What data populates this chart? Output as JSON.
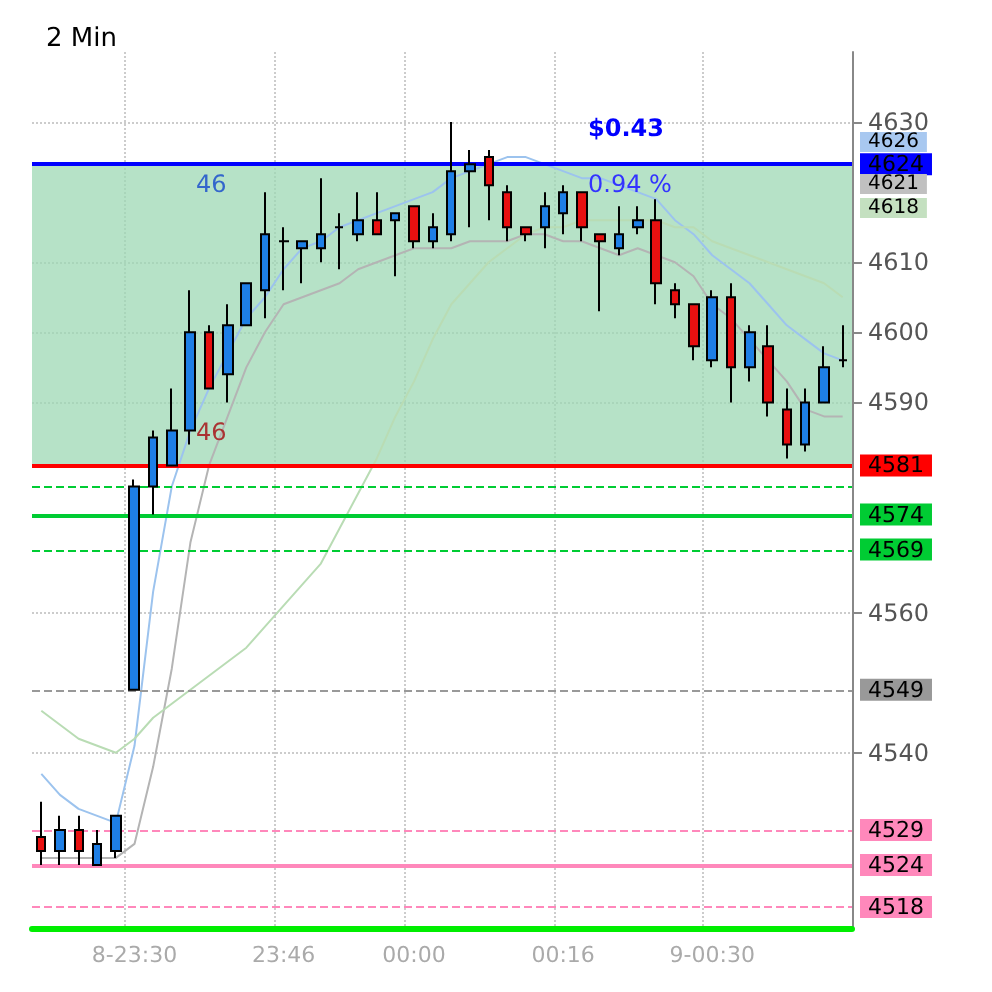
{
  "chart_data": {
    "type": "candlestick",
    "title": "2 Min",
    "categories": [
      null,
      null,
      null,
      null,
      null,
      "8-23:30",
      null,
      null,
      null,
      null,
      null,
      null,
      null,
      "23:46",
      null,
      null,
      null,
      null,
      null,
      null,
      "00:00",
      null,
      null,
      null,
      null,
      null,
      null,
      null,
      "00:16",
      null,
      null,
      null,
      null,
      null,
      null,
      null,
      "9-00:30",
      null,
      null,
      null,
      null,
      null,
      null,
      null
    ],
    "ohlc": [
      [
        4528,
        4533,
        4524,
        4526
      ],
      [
        4526,
        4531,
        4524,
        4529
      ],
      [
        4529,
        4531,
        4524,
        4526
      ],
      [
        4524,
        4529,
        4524,
        4527
      ],
      [
        4526,
        4531,
        4525,
        4531
      ],
      [
        4549,
        4579,
        4549,
        4578
      ],
      [
        4578,
        4586,
        4574,
        4585
      ],
      [
        4581,
        4592,
        4581,
        4586
      ],
      [
        4586,
        4606,
        4584,
        4600
      ],
      [
        4600,
        4601,
        4592,
        4592
      ],
      [
        4594,
        4604,
        4590,
        4601
      ],
      [
        4601,
        4607,
        4601,
        4607
      ],
      [
        4606,
        4620,
        4602,
        4614
      ],
      [
        4613,
        4615,
        4606,
        4613
      ],
      [
        4612,
        4613,
        4607,
        4613
      ],
      [
        4612,
        4622,
        4610,
        4614
      ],
      [
        4615,
        4617,
        4609,
        4615
      ],
      [
        4614,
        4620,
        4613,
        4616
      ],
      [
        4616,
        4620,
        4614,
        4614
      ],
      [
        4616,
        4617,
        4608,
        4617
      ],
      [
        4618,
        4618,
        4612,
        4613
      ],
      [
        4613,
        4617,
        4612,
        4615
      ],
      [
        4614,
        4630,
        4613,
        4623
      ],
      [
        4623,
        4626,
        4615,
        4624
      ],
      [
        4625,
        4626,
        4616,
        4621
      ],
      [
        4620,
        4621,
        4613,
        4615
      ],
      [
        4615,
        4615,
        4613,
        4614
      ],
      [
        4615,
        4620,
        4612,
        4618
      ],
      [
        4617,
        4621,
        4614,
        4620
      ],
      [
        4620,
        4620,
        4613,
        4615
      ],
      [
        4614,
        4614,
        4603,
        4613
      ],
      [
        4612,
        4618,
        4611,
        4614
      ],
      [
        4615,
        4618,
        4614,
        4616
      ],
      [
        4616,
        4619,
        4604,
        4607
      ],
      [
        4606,
        4607,
        4602,
        4604
      ],
      [
        4604,
        4604,
        4596,
        4598
      ],
      [
        4596,
        4606,
        4595,
        4605
      ],
      [
        4605,
        4607,
        4590,
        4595
      ],
      [
        4595,
        4601,
        4593,
        4600
      ],
      [
        4598,
        4601,
        4588,
        4590
      ],
      [
        4589,
        4592,
        4582,
        4584
      ],
      [
        4584,
        4592,
        4583,
        4590
      ],
      [
        4590,
        4598,
        4590,
        4595
      ],
      [
        4596,
        4601,
        4595,
        4596
      ]
    ],
    "colors": [
      "#e81010",
      "#1e7fe6",
      "#e81010",
      "#1e7fe6",
      "#1e7fe6",
      "#1e7fe6",
      "#1e7fe6",
      "#1e7fe6",
      "#1e7fe6",
      "#e81010",
      "#1e7fe6",
      "#1e7fe6",
      "#1e7fe6",
      "#000000",
      "#1e7fe6",
      "#1e7fe6",
      "#000000",
      "#1e7fe6",
      "#e81010",
      "#1e7fe6",
      "#e81010",
      "#1e7fe6",
      "#1e7fe6",
      "#1e7fe6",
      "#e81010",
      "#e81010",
      "#e81010",
      "#1e7fe6",
      "#1e7fe6",
      "#e81010",
      "#e81010",
      "#1e7fe6",
      "#1e7fe6",
      "#e81010",
      "#e81010",
      "#e81010",
      "#1e7fe6",
      "#e81010",
      "#1e7fe6",
      "#e81010",
      "#e81010",
      "#1e7fe6",
      "#1e7fe6",
      "#000000"
    ],
    "series": [
      {
        "type": "line",
        "color": "#9cc3ee",
        "values": [
          4537,
          4534,
          4532,
          4531,
          4530,
          4541,
          4563,
          4578,
          4586,
          4592,
          4597,
          4602,
          4605,
          4609,
          4612,
          4613,
          4615,
          4616,
          4617,
          4618,
          4619,
          4620,
          4622,
          4623,
          4624,
          4625,
          4625,
          4624,
          4623,
          4622,
          4622,
          4621,
          4620,
          4619,
          4616,
          4614,
          4611,
          4609,
          4607,
          4604,
          4601,
          4599,
          4597,
          4596
        ]
      },
      {
        "type": "line",
        "color": "#b4b4b4",
        "values": [
          4525,
          4525,
          4525,
          4525,
          4525,
          4527,
          4538,
          4552,
          4570,
          4581,
          4588,
          4595,
          4600,
          4604,
          4605,
          4606,
          4607,
          4609,
          4610,
          4611,
          4612,
          4612,
          4612,
          4613,
          4613,
          4613,
          4614,
          4614,
          4613,
          4613,
          4612,
          4611,
          4612,
          4611,
          4610,
          4608,
          4604,
          4602,
          4599,
          4596,
          4593,
          4589,
          4588,
          4588
        ]
      },
      {
        "type": "line",
        "color": "#b9dcb4",
        "values": [
          4546,
          4544,
          4542,
          4541,
          4540,
          4542,
          4545,
          4547,
          4549,
          4551,
          4553,
          4555,
          4558,
          4561,
          4564,
          4567,
          4572,
          4577,
          4582,
          4588,
          4593,
          4599,
          4604,
          4607,
          4610,
          4612,
          4614,
          4615,
          4615,
          4616,
          4616,
          4616,
          4616,
          4616,
          4615,
          4615,
          4613,
          4612,
          4611,
          4610,
          4609,
          4608,
          4607,
          4605
        ]
      }
    ],
    "ylim": [
      4515,
      4640
    ],
    "yticks": [
      4540,
      4560,
      4590,
      4600,
      4610,
      4630
    ],
    "ref_lines": [
      {
        "axis": "y",
        "value": 4624,
        "label": "4624",
        "color": "#0000ff",
        "line_style": "solid"
      },
      {
        "axis": "y",
        "value": 4581,
        "label": "4581",
        "color": "#ff0000",
        "line_style": "solid"
      },
      {
        "axis": "y",
        "value": 4578,
        "color": "#00cc33",
        "line_style": "dashed"
      },
      {
        "axis": "y",
        "value": 4574,
        "label": "4574",
        "color": "#00cc33",
        "line_style": "solid"
      },
      {
        "axis": "y",
        "value": 4569,
        "label": "4569",
        "color": "#00cc33",
        "line_style": "dashed"
      },
      {
        "axis": "y",
        "value": 4549,
        "label": "4549",
        "color": "#999999",
        "line_style": "dashed"
      },
      {
        "axis": "y",
        "value": 4529,
        "label": "4529",
        "color": "#ff88bb",
        "line_style": "dashed"
      },
      {
        "axis": "y",
        "value": 4524,
        "label": "4524",
        "color": "#ff88bb",
        "line_style": "solid"
      },
      {
        "axis": "y",
        "value": 4518,
        "label": "4518",
        "color": "#ff88bb",
        "line_style": "dashed"
      }
    ],
    "bands": [
      {
        "axis": "y",
        "from": 4581,
        "to": 4624,
        "color": "#9ed8b4"
      }
    ],
    "annotations": [
      "4626",
      "4621",
      "4618",
      "$0.43",
      "0.94 %",
      "46",
      "46"
    ],
    "grid": true
  }
}
